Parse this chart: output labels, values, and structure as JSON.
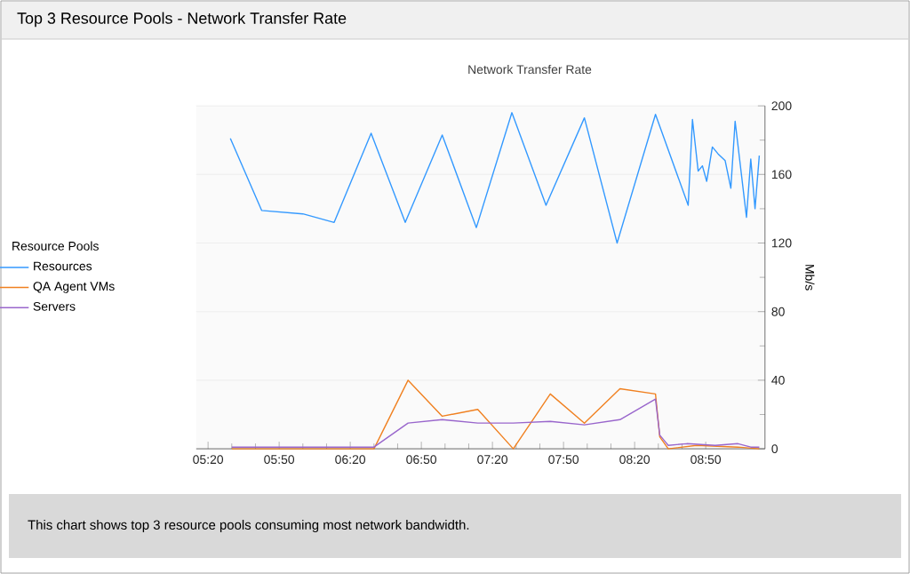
{
  "chart_data": {
    "type": "line",
    "title": "Top 3 Resource Pools - Network Transfer Rate",
    "subtitle": "Network Transfer Rate",
    "ylabel": "Mb/s",
    "legend_title": "Resource Pools",
    "legend": "left",
    "grid": "y",
    "marker": "none",
    "line_style": "solid",
    "annotations": [
      "This chart shows top 3 resource pools consuming most network bandwidth."
    ],
    "xlim": [
      5.25,
      9.25
    ],
    "ylim": [
      0,
      200
    ],
    "yticks": [
      0,
      40,
      80,
      120,
      160,
      200
    ],
    "xticks": [
      {
        "value": 5.3333,
        "label": "05:20"
      },
      {
        "value": 5.8333,
        "label": "05:50"
      },
      {
        "value": 6.3333,
        "label": "06:20"
      },
      {
        "value": 6.8333,
        "label": "06:50"
      },
      {
        "value": 7.3333,
        "label": "07:20"
      },
      {
        "value": 7.8333,
        "label": "07:50"
      },
      {
        "value": 8.3333,
        "label": "08:20"
      },
      {
        "value": 8.8333,
        "label": "08:50"
      }
    ],
    "series": [
      {
        "name": "Resources",
        "color": "#3399ff",
        "x": [
          5.49,
          5.71,
          6.0,
          6.22,
          6.48,
          6.72,
          6.98,
          7.22,
          7.47,
          7.71,
          7.98,
          8.21,
          8.48,
          8.71,
          8.74,
          8.78,
          8.81,
          8.84,
          8.88,
          8.92,
          8.97,
          9.01,
          9.04,
          9.12,
          9.15,
          9.18,
          9.21
        ],
        "values": [
          181,
          139,
          137,
          132,
          184,
          132,
          183,
          129,
          196,
          142,
          193,
          120,
          195,
          142,
          192,
          162,
          165,
          156,
          176,
          172,
          168,
          152,
          191,
          135,
          169,
          140,
          171
        ]
      },
      {
        "name": "QA Agent VMs",
        "color": "#f08020",
        "x": [
          5.5,
          6.5,
          6.74,
          6.98,
          7.23,
          7.48,
          7.74,
          7.98,
          8.23,
          8.48,
          8.51,
          8.57,
          8.77,
          9.06,
          9.21
        ],
        "values": [
          0,
          0,
          40,
          19,
          23,
          0,
          32,
          15,
          35,
          32,
          7,
          0,
          2,
          1,
          0
        ]
      },
      {
        "name": "Servers",
        "color": "#9966cc",
        "x": [
          5.5,
          6.5,
          6.74,
          6.98,
          7.23,
          7.48,
          7.74,
          7.98,
          8.23,
          8.48,
          8.51,
          8.55,
          8.57,
          8.7,
          8.9,
          9.06,
          9.15,
          9.21
        ],
        "values": [
          1,
          1,
          15,
          17,
          15,
          15,
          16,
          14,
          17,
          29,
          8,
          4,
          2,
          3,
          2,
          3,
          1,
          1
        ]
      }
    ]
  }
}
